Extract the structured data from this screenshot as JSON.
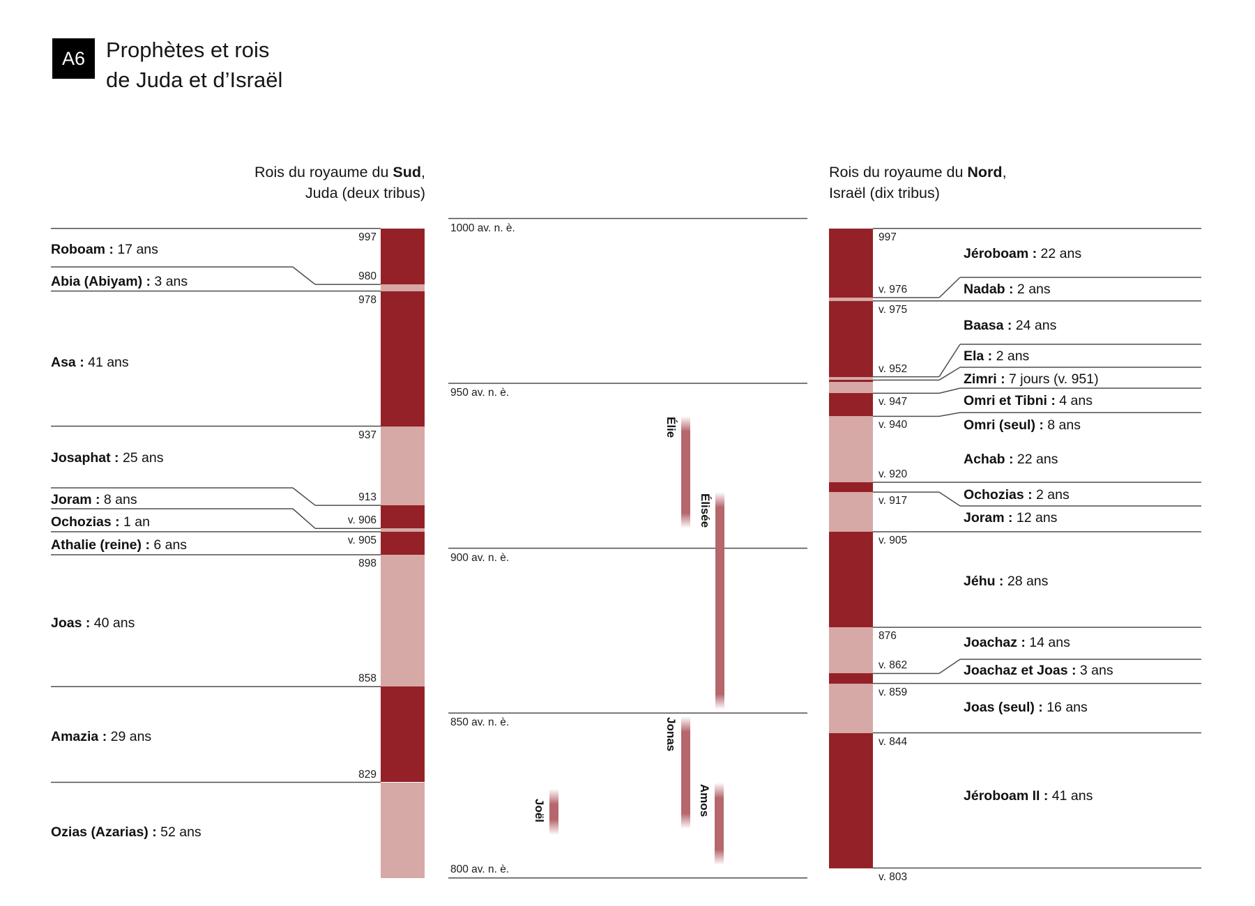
{
  "badge": "A6",
  "title": {
    "line1": "Prophètes et rois",
    "line2": "de Juda et d’Israël"
  },
  "colors": {
    "dark": "#942127",
    "light": "#d6a9a6",
    "prophet": "#b5676c",
    "line": "#4d4d4d",
    "text": "#161616",
    "badge_bg": "#000000",
    "badge_text": "#ffffff"
  },
  "axis": {
    "ticks": [
      {
        "year": 1000,
        "label": "1000 av. n. è."
      },
      {
        "year": 950,
        "label": "950 av. n. è."
      },
      {
        "year": 900,
        "label": "900 av. n. è."
      },
      {
        "year": 850,
        "label": "850 av. n. è."
      },
      {
        "year": 800,
        "label": "800 av. n. è."
      }
    ]
  },
  "south": {
    "heading": {
      "pre": "Rois du royaume du ",
      "bold": "Sud",
      "post": ",",
      "line2": "Juda (deux tribus)"
    },
    "kings": [
      {
        "name": "Roboam",
        "detail": "17 ans",
        "date_label": "997",
        "start": 997,
        "end": 980,
        "shade": "dark"
      },
      {
        "name": "Abia (Abiyam)",
        "detail": "3 ans",
        "date_label": "980",
        "start": 980,
        "end": 978,
        "shade": "light"
      },
      {
        "name": "Asa",
        "detail": "41 ans",
        "date_label": "978",
        "start": 978,
        "end": 937,
        "shade": "dark"
      },
      {
        "name": "Josaphat",
        "detail": "25 ans",
        "date_label": "937",
        "start": 937,
        "end": 913,
        "shade": "light"
      },
      {
        "name": "Joram",
        "detail": "8 ans",
        "date_label": "913",
        "start": 913,
        "end": 906,
        "shade": "dark"
      },
      {
        "name": "Ochozias",
        "detail": "1 an",
        "date_label": "v. 906",
        "start": 906,
        "end": 905,
        "shade": "light"
      },
      {
        "name": "Athalie (reine)",
        "detail": "6 ans",
        "date_label": "v. 905",
        "start": 905,
        "end": 898,
        "shade": "dark"
      },
      {
        "name": "Joas",
        "detail": "40 ans",
        "date_label": "898",
        "start": 898,
        "end": 858,
        "shade": "light"
      },
      {
        "name": "Amazia",
        "detail": "29 ans",
        "date_label": "858",
        "start": 858,
        "end": 829,
        "shade": "dark"
      },
      {
        "name": "Ozias (Azarias)",
        "detail": "52 ans",
        "date_label": "829",
        "start": 829,
        "end": 800,
        "shade": "light"
      }
    ]
  },
  "north": {
    "heading": {
      "pre": "Rois du royaume du ",
      "bold": "Nord",
      "post": ",",
      "line2": "Israël (dix tribus)"
    },
    "kings": [
      {
        "name": "Jéroboam",
        "detail": "22 ans",
        "date_label": "997",
        "start": 997,
        "end": 976,
        "shade": "dark"
      },
      {
        "name": "Nadab",
        "detail": "2 ans",
        "date_label": "v. 976",
        "start": 976,
        "end": 975,
        "shade": "light"
      },
      {
        "name": "Baasa",
        "detail": "24 ans",
        "date_label": "v. 975",
        "start": 975,
        "end": 952,
        "shade": "dark"
      },
      {
        "name": "Ela",
        "detail": "2 ans",
        "date_label": "v. 952",
        "start": 952,
        "end": 951,
        "shade": "light"
      },
      {
        "name": "Zimri",
        "detail": "7 jours (v. 951)",
        "date_label": null,
        "start": 951,
        "end": 951,
        "shade": "dark"
      },
      {
        "name": "Omri et Tibni",
        "detail": "4 ans",
        "date_label": null,
        "start": 951,
        "end": 947,
        "shade": "light"
      },
      {
        "name": "Omri (seul)",
        "detail": "8 ans",
        "date_label": "v. 947",
        "start": 947,
        "end": 940,
        "shade": "dark"
      },
      {
        "name": "Achab",
        "detail": "22 ans",
        "date_label": "v. 940",
        "start": 940,
        "end": 920,
        "shade": "light"
      },
      {
        "name": "Ochozias",
        "detail": "2 ans",
        "date_label": "v. 920",
        "start": 920,
        "end": 917,
        "shade": "dark"
      },
      {
        "name": "Joram",
        "detail": "12 ans",
        "date_label": "v. 917",
        "start": 917,
        "end": 905,
        "shade": "light"
      },
      {
        "name": "Jéhu",
        "detail": "28 ans",
        "date_label": "v. 905",
        "start": 905,
        "end": 876,
        "shade": "dark"
      },
      {
        "name": "Joachaz",
        "detail": "14 ans",
        "date_label": "876",
        "start": 876,
        "end": 862,
        "shade": "light"
      },
      {
        "name": "Joachaz et Joas",
        "detail": "3 ans",
        "date_label": "v. 862",
        "start": 862,
        "end": 859,
        "shade": "dark"
      },
      {
        "name": "Joas (seul)",
        "detail": "16 ans",
        "date_label": "v. 859",
        "start": 859,
        "end": 844,
        "shade": "light"
      },
      {
        "name": "Jéroboam II",
        "detail": "41 ans",
        "date_label": "v. 844",
        "start": 844,
        "end": 803,
        "shade": "dark"
      }
    ],
    "end_label": {
      "label": "v. 803",
      "year": 803
    }
  },
  "prophets": [
    {
      "name": "Élie",
      "start": 940,
      "end": 906
    },
    {
      "name": "Élisée",
      "start": 917,
      "end": 851
    },
    {
      "name": "Jonas",
      "start": 849,
      "end": 815
    },
    {
      "name": "Amos",
      "start": 829,
      "end": 804
    },
    {
      "name": "Joël",
      "start": 827,
      "end": 813
    }
  ]
}
